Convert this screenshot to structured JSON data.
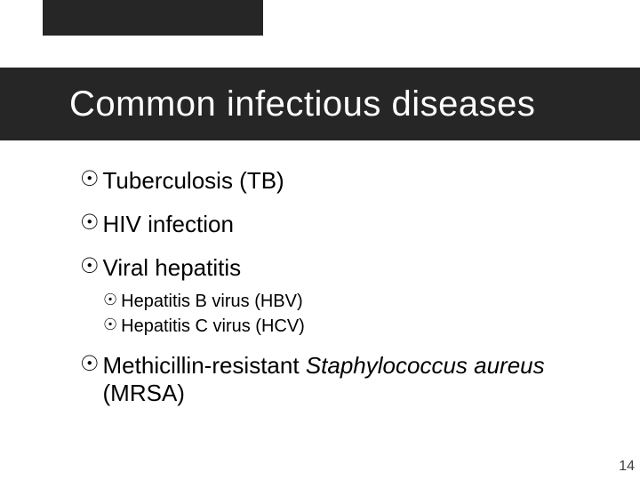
{
  "colors": {
    "band_bg": "#262626",
    "title_color": "#ffffff",
    "text_color": "#000000",
    "page_num_color": "#404040",
    "slide_bg": "#ffffff"
  },
  "typography": {
    "title_fontsize": 40,
    "l1_fontsize": 26,
    "l2_fontsize": 20,
    "page_num_fontsize": 16,
    "font_family": "Arial"
  },
  "bullet_glyph": "☉",
  "title": "Common infectious diseases",
  "items": [
    {
      "text": "Tuberculosis (TB)"
    },
    {
      "text": "HIV infection"
    },
    {
      "text": "Viral hepatitis",
      "children": [
        {
          "text": "Hepatitis B virus (HBV)"
        },
        {
          "text": "Hepatitis C virus (HCV)"
        }
      ]
    },
    {
      "text_html": "Methicillin-resistant <span class=\"italic\">Staphylococcus aureus</span> (MRSA)"
    }
  ],
  "page_number": "14"
}
